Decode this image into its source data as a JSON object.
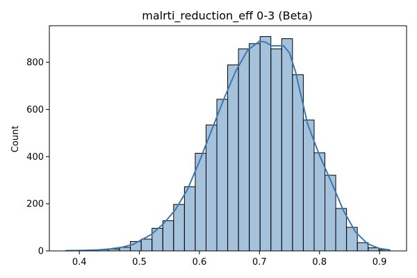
{
  "chart_data": {
    "type": "bar",
    "title": "malrti_reduction_eff 0-3 (Beta)",
    "xlabel": "",
    "ylabel": "Count",
    "xlim": [
      0.35,
      0.945
    ],
    "ylim": [
      0,
      955
    ],
    "x_ticks": [
      "0.4",
      "0.5",
      "0.6",
      "0.7",
      "0.8",
      "0.9"
    ],
    "y_ticks": [
      "0",
      "200",
      "400",
      "600",
      "800"
    ],
    "bar_color": "#5b8fbf",
    "kde_color": "#3b76af",
    "grid": false,
    "legend": "none",
    "series": [
      {
        "bin_edges": [
          0.377,
          0.395,
          0.413,
          0.431,
          0.449,
          0.467,
          0.485,
          0.503,
          0.521,
          0.539,
          0.557,
          0.575,
          0.593,
          0.611,
          0.629,
          0.647,
          0.665,
          0.683,
          0.701,
          0.719,
          0.737,
          0.755,
          0.773,
          0.791,
          0.809,
          0.827,
          0.845,
          0.863,
          0.881,
          0.899,
          0.917
        ],
        "values": [
          1,
          2,
          3,
          5,
          8,
          15,
          40,
          50,
          96,
          128,
          197,
          272,
          414,
          534,
          643,
          789,
          857,
          879,
          909,
          857,
          900,
          747,
          555,
          416,
          321,
          180,
          100,
          35,
          13,
          5
        ]
      }
    ],
    "kde": {
      "x": [
        0.377,
        0.4,
        0.43,
        0.45,
        0.47,
        0.49,
        0.5,
        0.52,
        0.54,
        0.56,
        0.58,
        0.6,
        0.62,
        0.64,
        0.66,
        0.68,
        0.7,
        0.71,
        0.72,
        0.73,
        0.74,
        0.75,
        0.76,
        0.77,
        0.78,
        0.8,
        0.82,
        0.84,
        0.86,
        0.88,
        0.9,
        0.917
      ],
      "y": [
        1,
        2,
        4,
        8,
        15,
        28,
        42,
        70,
        115,
        175,
        260,
        380,
        510,
        640,
        760,
        850,
        890,
        885,
        870,
        870,
        870,
        840,
        760,
        650,
        540,
        405,
        290,
        170,
        80,
        30,
        10,
        4
      ]
    }
  }
}
